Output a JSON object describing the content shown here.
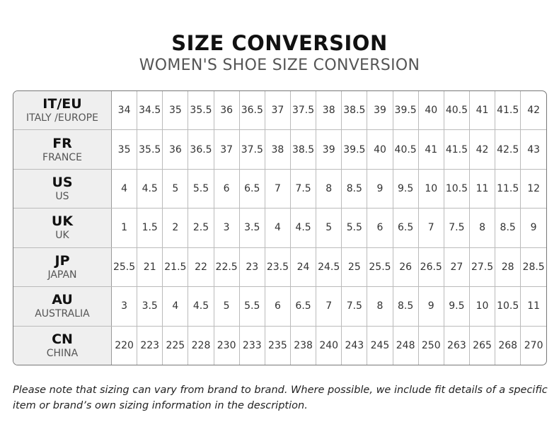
{
  "title": "SIZE CONVERSION",
  "subtitle": "WOMEN'S SHOE SIZE CONVERSION",
  "rows": [
    {
      "code": "IT/EU",
      "name": "ITALY /EUROPE",
      "values": [
        "34",
        "34.5",
        "35",
        "35.5",
        "36",
        "36.5",
        "37",
        "37.5",
        "38",
        "38.5",
        "39",
        "39.5",
        "40",
        "40.5",
        "41",
        "41.5",
        "42"
      ]
    },
    {
      "code": "FR",
      "name": "FRANCE",
      "values": [
        "35",
        "35.5",
        "36",
        "36.5",
        "37",
        "37.5",
        "38",
        "38.5",
        "39",
        "39.5",
        "40",
        "40.5",
        "41",
        "41.5",
        "42",
        "42.5",
        "43"
      ]
    },
    {
      "code": "US",
      "name": "US",
      "values": [
        "4",
        "4.5",
        "5",
        "5.5",
        "6",
        "6.5",
        "7",
        "7.5",
        "8",
        "8.5",
        "9",
        "9.5",
        "10",
        "10.5",
        "11",
        "11.5",
        "12"
      ]
    },
    {
      "code": "UK",
      "name": "UK",
      "values": [
        "1",
        "1.5",
        "2",
        "2.5",
        "3",
        "3.5",
        "4",
        "4.5",
        "5",
        "5.5",
        "6",
        "6.5",
        "7",
        "7.5",
        "8",
        "8.5",
        "9"
      ]
    },
    {
      "code": "JP",
      "name": "JAPAN",
      "values": [
        "25.5",
        "21",
        "21.5",
        "22",
        "22.5",
        "23",
        "23.5",
        "24",
        "24.5",
        "25",
        "25.5",
        "26",
        "26.5",
        "27",
        "27.5",
        "28",
        "28.5"
      ]
    },
    {
      "code": "AU",
      "name": "AUSTRALIA",
      "values": [
        "3",
        "3.5",
        "4",
        "4.5",
        "5",
        "5.5",
        "6",
        "6.5",
        "7",
        "7.5",
        "8",
        "8.5",
        "9",
        "9.5",
        "10",
        "10.5",
        "11"
      ]
    },
    {
      "code": "CN",
      "name": "CHINA",
      "values": [
        "220",
        "223",
        "225",
        "228",
        "230",
        "233",
        "235",
        "238",
        "240",
        "243",
        "245",
        "248",
        "250",
        "263",
        "265",
        "268",
        "270"
      ]
    }
  ],
  "note": "Please note that sizing can vary from brand to brand. Where possible, we include fit details of a specific item or brand’s own sizing information in the description."
}
